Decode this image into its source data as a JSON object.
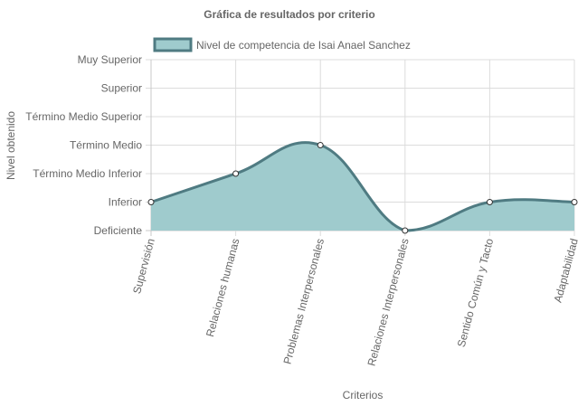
{
  "chart_data": {
    "type": "area",
    "title": "Gráfica de resultados por criterio",
    "xlabel": "Criterios",
    "ylabel": "Nivel obtenido",
    "categories": [
      "Supervisión",
      "Relaciones humanas",
      "Problemas Interpersonales",
      "Relaciones Interpersonales",
      "Sentido Común y Tacto",
      "Adaptabilidad"
    ],
    "y_levels": [
      "Deficiente",
      "Inferior",
      "Término Medio Inferior",
      "Término Medio",
      "Término Medio Superior",
      "Superior",
      "Muy Superior"
    ],
    "ylim": [
      0,
      6
    ],
    "series": [
      {
        "name": "Nivel de competencia de Isai Anael Sanchez",
        "values": [
          1,
          2,
          3,
          0,
          1,
          1
        ]
      }
    ],
    "legend_position": "top",
    "grid": true
  },
  "colors": {
    "fill": "#9fcbcd",
    "line": "#4f7b82",
    "point_fill": "#ffffff",
    "point_stroke": "#333333"
  }
}
